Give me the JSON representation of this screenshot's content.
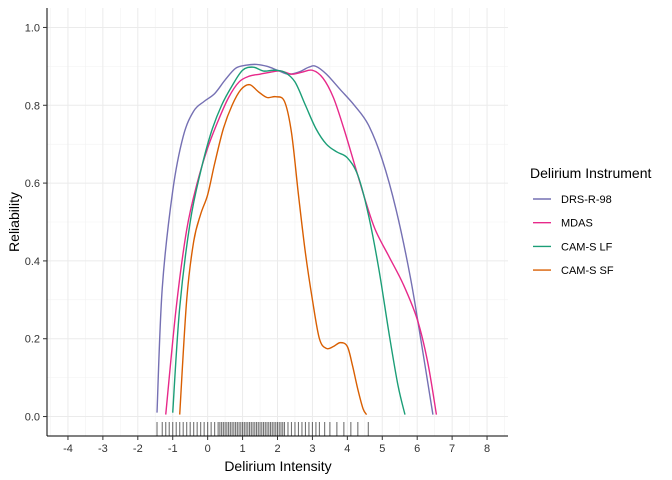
{
  "chart_data": {
    "type": "line",
    "title": "",
    "xlabel": "Delirium Intensity",
    "ylabel": "Reliability",
    "xlim": [
      -4.6,
      8.6
    ],
    "ylim": [
      -0.05,
      1.05
    ],
    "xticks": [
      -4,
      -3,
      -2,
      -1,
      0,
      1,
      2,
      3,
      4,
      5,
      6,
      7,
      8
    ],
    "yticks": [
      0.0,
      0.2,
      0.4,
      0.6,
      0.8,
      1.0
    ],
    "ytick_labels": [
      "0.0",
      "0.2",
      "0.4",
      "0.6",
      "0.8",
      "1.0"
    ],
    "grid": true,
    "legend": {
      "title": "Delirium Instrument",
      "placement": "right"
    },
    "series": [
      {
        "name": "DRS-R-98",
        "color": "#7570b3",
        "x": [
          -1.45,
          -1.3,
          -1.0,
          -0.7,
          -0.4,
          -0.1,
          0.2,
          0.5,
          0.8,
          1.1,
          1.4,
          1.7,
          2.0,
          2.3,
          2.6,
          2.9,
          3.1,
          3.4,
          3.8,
          4.2,
          4.6,
          5.0,
          5.4,
          5.8,
          6.1,
          6.45
        ],
        "y": [
          0.01,
          0.33,
          0.58,
          0.72,
          0.785,
          0.81,
          0.83,
          0.865,
          0.895,
          0.903,
          0.905,
          0.9,
          0.89,
          0.88,
          0.885,
          0.898,
          0.9,
          0.88,
          0.84,
          0.8,
          0.75,
          0.66,
          0.53,
          0.36,
          0.2,
          0.005
        ]
      },
      {
        "name": "MDAS",
        "color": "#e7298a",
        "x": [
          -1.2,
          -0.9,
          -0.6,
          -0.3,
          0.0,
          0.3,
          0.6,
          0.9,
          1.2,
          1.5,
          1.8,
          2.1,
          2.4,
          2.7,
          3.0,
          3.3,
          3.6,
          3.9,
          4.2,
          4.5,
          4.8,
          5.2,
          5.6,
          6.0,
          6.3,
          6.55
        ],
        "y": [
          0.005,
          0.28,
          0.48,
          0.6,
          0.69,
          0.76,
          0.82,
          0.86,
          0.875,
          0.88,
          0.885,
          0.888,
          0.88,
          0.885,
          0.89,
          0.87,
          0.82,
          0.74,
          0.65,
          0.56,
          0.48,
          0.41,
          0.34,
          0.25,
          0.14,
          0.005
        ]
      },
      {
        "name": "CAM-S LF",
        "color": "#1b9e77",
        "x": [
          -1.0,
          -0.8,
          -0.5,
          -0.2,
          0.1,
          0.4,
          0.7,
          1.0,
          1.3,
          1.6,
          1.9,
          2.2,
          2.5,
          2.8,
          3.1,
          3.4,
          3.7,
          4.0,
          4.3,
          4.6,
          4.9,
          5.2,
          5.45,
          5.65
        ],
        "y": [
          0.01,
          0.28,
          0.5,
          0.63,
          0.73,
          0.8,
          0.85,
          0.89,
          0.898,
          0.888,
          0.89,
          0.885,
          0.86,
          0.8,
          0.74,
          0.7,
          0.68,
          0.665,
          0.62,
          0.52,
          0.38,
          0.21,
          0.08,
          0.005
        ]
      },
      {
        "name": "CAM-S SF",
        "color": "#d95f02",
        "x": [
          -0.8,
          -0.6,
          -0.4,
          -0.2,
          0.0,
          0.2,
          0.45,
          0.7,
          0.95,
          1.2,
          1.45,
          1.7,
          1.95,
          2.2,
          2.4,
          2.6,
          2.8,
          3.0,
          3.2,
          3.4,
          3.6,
          3.8,
          4.0,
          4.15,
          4.3,
          4.45,
          4.55
        ],
        "y": [
          0.005,
          0.3,
          0.45,
          0.52,
          0.57,
          0.65,
          0.74,
          0.8,
          0.84,
          0.853,
          0.835,
          0.82,
          0.822,
          0.81,
          0.73,
          0.57,
          0.42,
          0.3,
          0.2,
          0.175,
          0.18,
          0.19,
          0.18,
          0.13,
          0.07,
          0.02,
          0.005
        ]
      }
    ],
    "rug_x": [
      -1.45,
      -1.3,
      -1.2,
      -1.1,
      -1.0,
      -0.9,
      -0.8,
      -0.7,
      -0.6,
      -0.5,
      -0.4,
      -0.3,
      -0.2,
      -0.1,
      0.0,
      0.1,
      0.2,
      0.3,
      0.35,
      0.4,
      0.45,
      0.5,
      0.55,
      0.6,
      0.65,
      0.7,
      0.75,
      0.8,
      0.85,
      0.9,
      0.95,
      1.0,
      1.05,
      1.1,
      1.15,
      1.2,
      1.25,
      1.3,
      1.35,
      1.4,
      1.45,
      1.5,
      1.55,
      1.6,
      1.65,
      1.7,
      1.75,
      1.8,
      1.85,
      1.9,
      1.95,
      2.0,
      2.05,
      2.1,
      2.15,
      2.2,
      2.3,
      2.4,
      2.5,
      2.6,
      2.7,
      2.8,
      2.9,
      3.0,
      3.1,
      3.2,
      3.35,
      3.5,
      3.7,
      3.9,
      4.1,
      4.3,
      4.6
    ]
  }
}
